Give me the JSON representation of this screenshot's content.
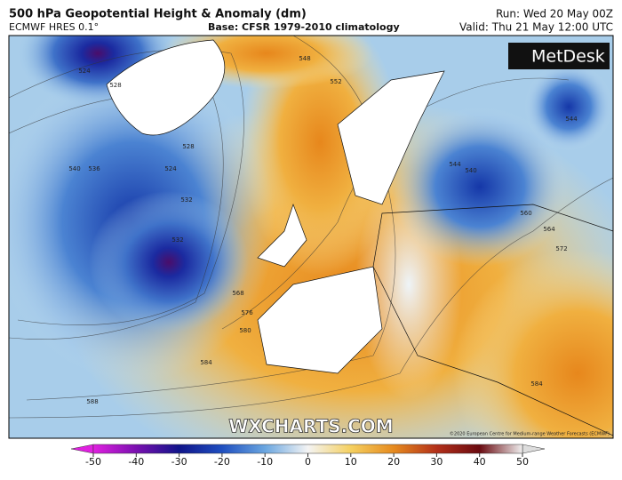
{
  "header": {
    "title": "500 hPa Geopotential Height & Anomaly (dm)",
    "model": "ECMWF HRES 0.1°",
    "base": "Base: CFSR 1979-2010 climatology",
    "run": "Run: Wed 20 May 00Z",
    "valid": "Valid: Thu 21 May 12:00 UTC"
  },
  "map": {
    "logo": "MetDesk",
    "watermark": "WXCHARTS.COM",
    "copyright": "©2020 European Centre for Medium-range Weather Forecasts (ECMWF)",
    "contour_labels": [
      524,
      528,
      540,
      536,
      528,
      524,
      532,
      532,
      548,
      552,
      568,
      576,
      580,
      584,
      588,
      544,
      540,
      544,
      560,
      564,
      572,
      584
    ]
  },
  "colorbar": {
    "lim": [
      -50,
      50
    ],
    "ticks": [
      -50,
      -40,
      -30,
      -20,
      -10,
      0,
      10,
      20,
      30,
      40,
      50
    ]
  }
}
